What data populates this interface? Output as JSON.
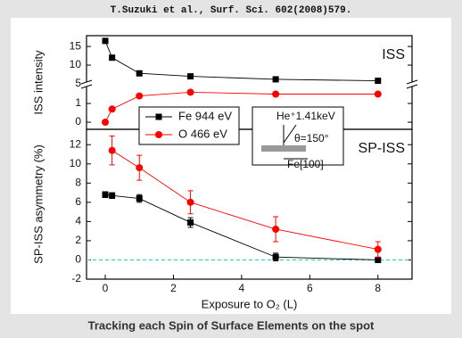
{
  "header": "T.Suzuki et al., Surf. Sci. 602(2008)579.",
  "caption": "Tracking each Spin of Surface Elements on the spot",
  "chart_data": [
    {
      "type": "line",
      "label": "ISS",
      "ylabel": "ISS intensity",
      "x": [
        0,
        0.2,
        1,
        2.5,
        5,
        8
      ],
      "xlim": [
        -0.55,
        9
      ],
      "ylim": [
        4.75,
        17.9
      ],
      "yticks": [
        5,
        10,
        15
      ],
      "y2lim": [
        -0.38,
        2
      ],
      "y2ticks": [
        0,
        1
      ],
      "series": [
        {
          "color": "#000000",
          "marker": "square",
          "values": [
            16.5,
            12,
            7.8,
            7,
            6.2,
            5.8
          ]
        },
        {
          "color": "#ff0000",
          "marker": "circle",
          "axis": "y2",
          "values": [
            0,
            0.7,
            1.4,
            1.6,
            1.5,
            1.5
          ]
        }
      ]
    },
    {
      "type": "line",
      "label": "SP-ISS",
      "ylabel": "SP-ISS asymmetry (%)",
      "xlabel": "Exposure to O₂ (L)",
      "x": [
        0,
        0.2,
        1,
        2.5,
        5,
        8
      ],
      "xlim": [
        -0.55,
        9
      ],
      "xticks": [
        0,
        2,
        4,
        6,
        8
      ],
      "ylim": [
        -2,
        13.6
      ],
      "yticks": [
        -2,
        0,
        2,
        4,
        6,
        8,
        10,
        12
      ],
      "series": [
        {
          "name": "Fe 944 eV",
          "color": "#000000",
          "marker": "square",
          "values": [
            6.8,
            6.7,
            6.4,
            3.9,
            0.3,
            0.0
          ],
          "errors": [
            0.3,
            0.3,
            0.4,
            0.5,
            0.4,
            0.2
          ]
        },
        {
          "name": "O 466 eV",
          "color": "#ff0000",
          "marker": "circle",
          "values": [
            null,
            11.4,
            9.6,
            6.0,
            3.2,
            1.1
          ],
          "errors": [
            null,
            1.5,
            1.3,
            1.2,
            1.3,
            0.8
          ]
        }
      ],
      "inset": {
        "beam": "He⁺1.41keV",
        "angle": "θ=150°",
        "direction": "Fe[100]"
      }
    }
  ]
}
